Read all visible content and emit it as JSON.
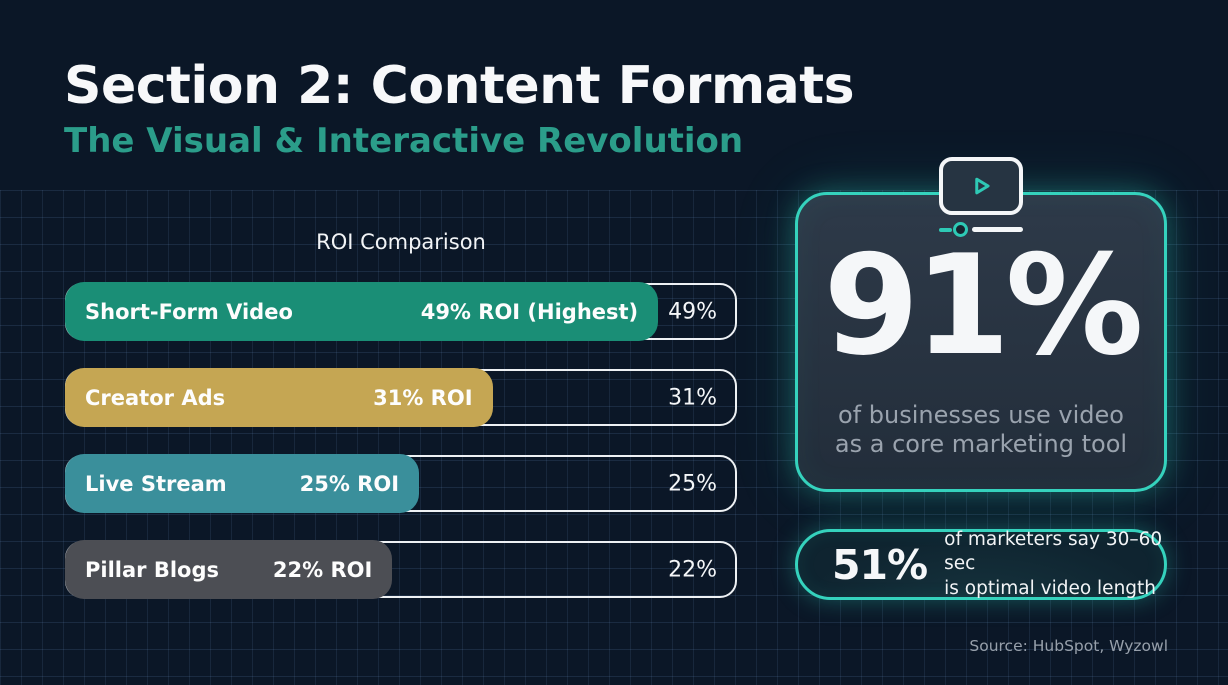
{
  "slide": {
    "title": "Section 2: Content Formats",
    "subtitle": "The Visual & Interactive Revolution",
    "source": "Source: HubSpot, Wyzowl"
  },
  "chart_data": {
    "type": "bar",
    "orientation": "horizontal",
    "title": "ROI Comparison",
    "categories": [
      "Short-Form Video",
      "Creator Ads",
      "Live Stream",
      "Pillar Blogs"
    ],
    "values": [
      49,
      31,
      25,
      22
    ],
    "unit": "% ROI",
    "bar_labels": [
      "49% ROI (Highest)",
      "31% ROI",
      "25% ROI",
      "22% ROI"
    ],
    "value_labels": [
      "49%",
      "31%",
      "25%",
      "22%"
    ],
    "bar_colors": [
      "#1A8E76",
      "#C5A653",
      "#3A8F9B",
      "#4C4E54"
    ],
    "fill_percent_of_track": [
      88.8,
      64,
      53,
      49
    ],
    "xlim": [
      0,
      55
    ],
    "legend": false,
    "grid": "decorative background grid only"
  },
  "stat_card": {
    "icon": "video-player-icon",
    "value": "91%",
    "description": [
      "of businesses use video",
      "as a core marketing tool"
    ]
  },
  "stat_pill": {
    "value": "51%",
    "text": [
      "of marketers say 30–60 sec",
      "is optimal video length"
    ]
  },
  "colors": {
    "background": "#0B1727",
    "accent_glow_teal": "#35D2BD",
    "subtitle_teal": "#2B9D8A",
    "bar_teal_green": "#1A8E76",
    "bar_gold": "#C5A653",
    "bar_teal_blue": "#3A8F9B",
    "bar_gray": "#4C4E54",
    "muted_text": "#9AA3AE"
  }
}
